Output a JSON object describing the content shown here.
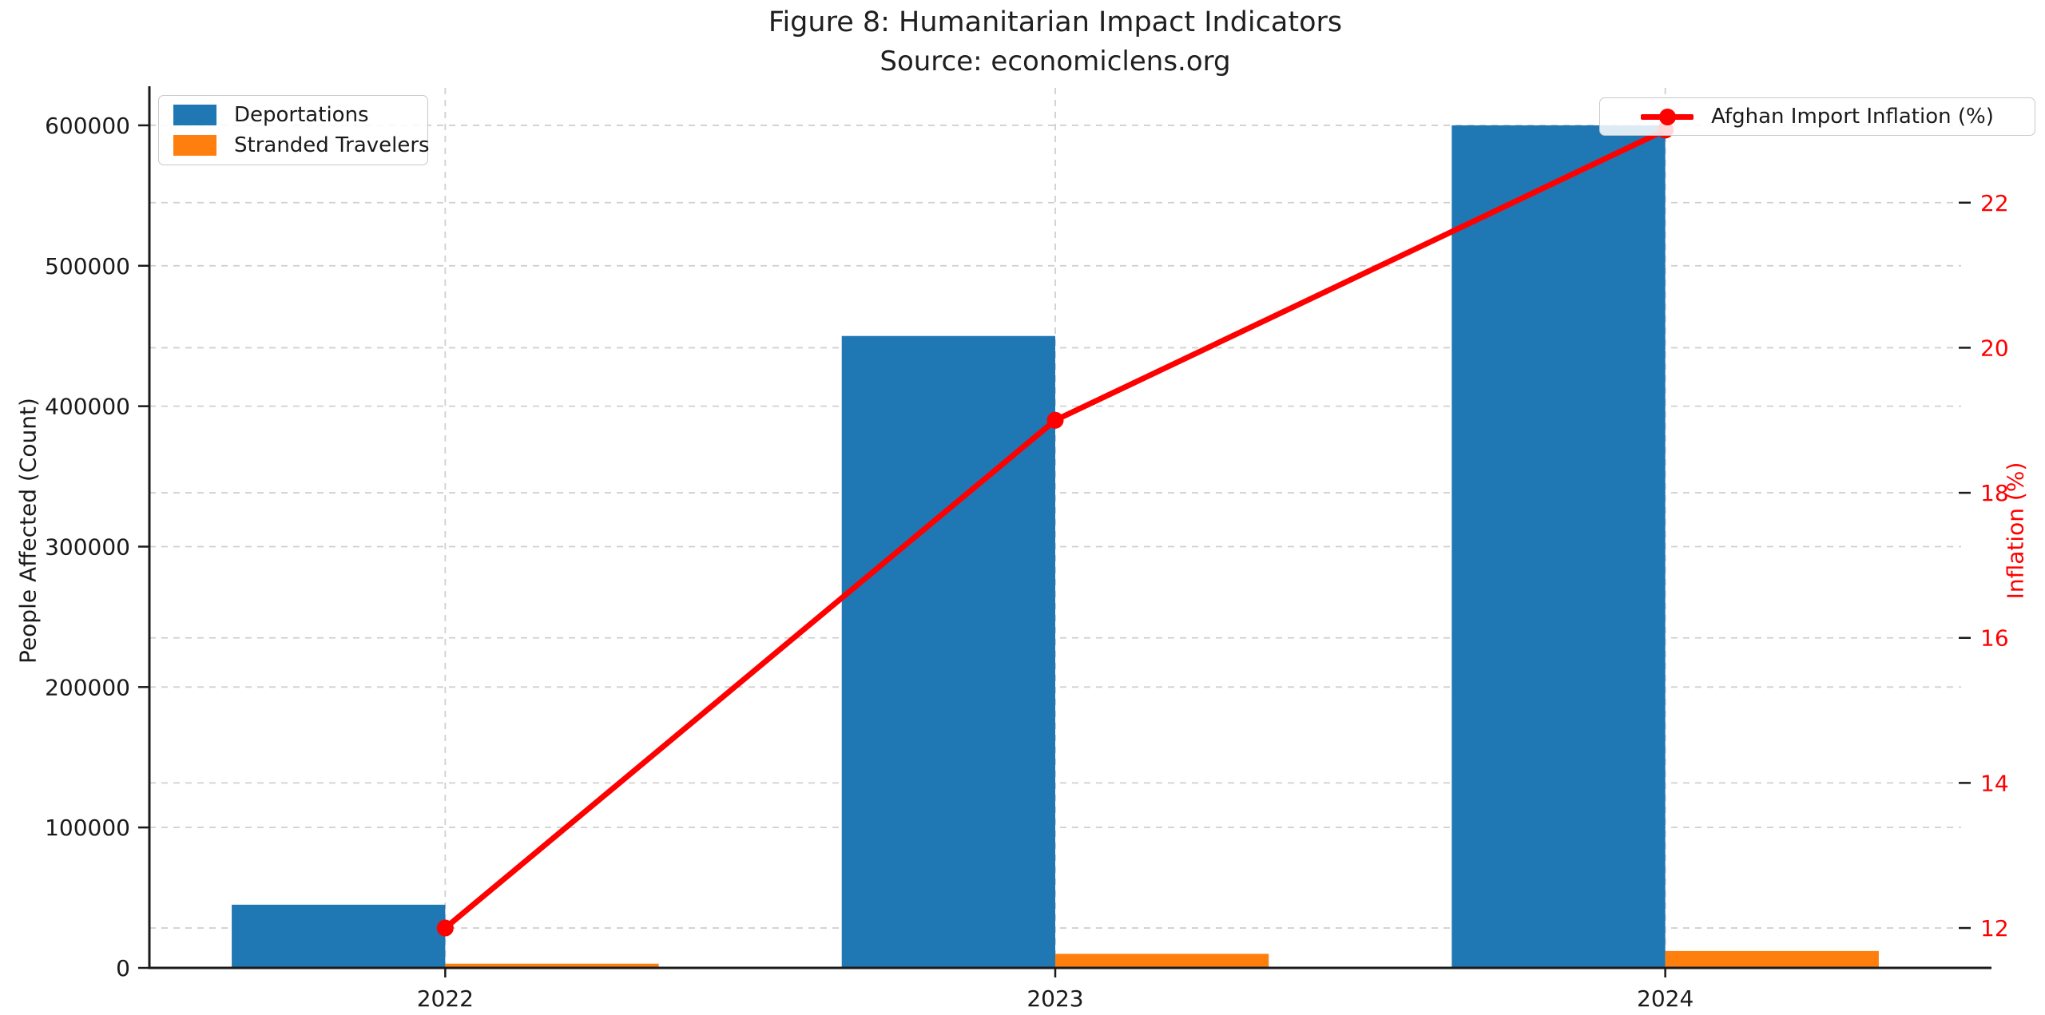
{
  "chart_data": {
    "type": "bar",
    "subtype": "combo-bar-line-dual-axis",
    "title": "Figure 8: Humanitarian Impact Indicators",
    "subtitle": "Source: economiclens.org",
    "categories": [
      "2022",
      "2023",
      "2024"
    ],
    "x_values": [
      2022,
      2023,
      2024
    ],
    "bar_series": [
      {
        "name": "Deportations",
        "color": "#1f77b4",
        "axis": "left",
        "values": [
          45000,
          450000,
          600000
        ]
      },
      {
        "name": "Stranded Travelers",
        "color": "#ff7f0e",
        "axis": "left",
        "values": [
          3000,
          10000,
          12000
        ]
      }
    ],
    "line_series": [
      {
        "name": "Afghan Import Inflation (%)",
        "color": "#ff0000",
        "axis": "right",
        "values": [
          12.0,
          19.0,
          23.0
        ]
      }
    ],
    "left_axis": {
      "label": "People Affected (Count)",
      "ticks": [
        0,
        100000,
        200000,
        300000,
        400000,
        500000,
        600000
      ],
      "range": [
        0,
        625000
      ],
      "color": "#1a1a1a"
    },
    "right_axis": {
      "label": "Inflation (%)",
      "ticks": [
        12,
        14,
        16,
        18,
        20,
        22
      ],
      "range": [
        11.45,
        23.55
      ],
      "color": "#ff0000"
    },
    "x_axis": {
      "range": [
        2021.515,
        2024.485
      ],
      "bar_width": 0.35
    },
    "grid": {
      "on": true,
      "style": "dashed",
      "color": "#d0d0d0"
    },
    "legend_positions": {
      "bars": "upper left",
      "line": "upper right"
    }
  }
}
